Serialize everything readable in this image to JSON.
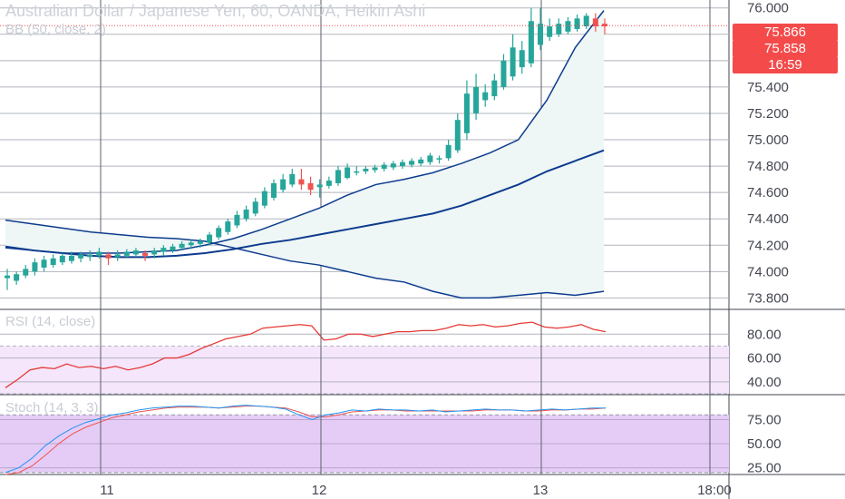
{
  "header": {
    "title": "Australian Dollar / Japanese Yen, 60, OANDA, Heikin Ashi",
    "indicator": "BB (50, close, 2)",
    "rsi_label": "RSI (14, close)",
    "stoch_label": "Stoch (14, 3, 3)"
  },
  "price_tags": {
    "last": "75.866",
    "second": "75.858",
    "countdown": "16:59",
    "color": "#f44a4a"
  },
  "colors": {
    "up": "#26a69a",
    "down": "#ef5350",
    "bb_line": "#0d3b8e",
    "bb_fill": "#eef6f6",
    "rsi_line": "#e53935",
    "rsi_band": "#f5e6fb",
    "stoch_band": "#e5ccf6",
    "stoch_k": "#2196f3",
    "stoch_d": "#ef5350"
  },
  "chart_data": [
    {
      "type": "candlestick",
      "y_ticks": [
        "76.000",
        "75.400",
        "75.200",
        "75.000",
        "74.800",
        "74.600",
        "74.400",
        "74.200",
        "74.000",
        "73.800"
      ],
      "x_ticks": [
        "11",
        "12",
        "13",
        "18:00"
      ],
      "ylim": [
        73.72,
        76.06
      ],
      "candles_ohlc": [
        [
          73.95,
          74.02,
          73.86,
          73.97
        ],
        [
          73.93,
          74.0,
          73.9,
          73.98
        ],
        [
          73.97,
          74.05,
          73.95,
          74.02
        ],
        [
          74.0,
          74.1,
          73.97,
          74.07
        ],
        [
          74.03,
          74.12,
          74.0,
          74.09
        ],
        [
          74.05,
          74.13,
          74.03,
          74.1
        ],
        [
          74.07,
          74.14,
          74.05,
          74.12
        ],
        [
          74.08,
          74.15,
          74.06,
          74.12
        ],
        [
          74.1,
          74.15,
          74.07,
          74.13
        ],
        [
          74.11,
          74.16,
          74.08,
          74.13
        ],
        [
          74.12,
          74.18,
          74.1,
          74.15
        ],
        [
          74.13,
          74.15,
          74.05,
          74.1
        ],
        [
          74.11,
          74.16,
          74.08,
          74.13
        ],
        [
          74.12,
          74.17,
          74.1,
          74.15
        ],
        [
          74.13,
          74.18,
          74.11,
          74.16
        ],
        [
          74.14,
          74.16,
          74.08,
          74.12
        ],
        [
          74.13,
          74.18,
          74.1,
          74.16
        ],
        [
          74.15,
          74.2,
          74.12,
          74.18
        ],
        [
          74.16,
          74.21,
          74.14,
          74.19
        ],
        [
          74.18,
          74.23,
          74.16,
          74.21
        ],
        [
          74.2,
          74.24,
          74.17,
          74.22
        ],
        [
          74.21,
          74.25,
          74.18,
          74.23
        ],
        [
          74.22,
          74.3,
          74.2,
          74.28
        ],
        [
          74.26,
          74.35,
          74.24,
          74.33
        ],
        [
          74.3,
          74.4,
          74.28,
          74.38
        ],
        [
          74.35,
          74.46,
          74.33,
          74.43
        ],
        [
          74.4,
          74.5,
          74.38,
          74.47
        ],
        [
          74.44,
          74.56,
          74.42,
          74.53
        ],
        [
          74.5,
          74.64,
          74.48,
          74.61
        ],
        [
          74.56,
          74.7,
          74.54,
          74.67
        ],
        [
          74.62,
          74.74,
          74.6,
          74.7
        ],
        [
          74.66,
          74.78,
          74.64,
          74.74
        ],
        [
          74.7,
          74.78,
          74.62,
          74.66
        ],
        [
          74.67,
          74.72,
          74.58,
          74.62
        ],
        [
          74.64,
          74.7,
          74.56,
          74.66
        ],
        [
          74.65,
          74.72,
          74.63,
          74.69
        ],
        [
          74.67,
          74.8,
          74.65,
          74.77
        ],
        [
          74.71,
          74.82,
          74.7,
          74.79
        ],
        [
          74.75,
          74.8,
          74.73,
          74.76
        ],
        [
          74.76,
          74.8,
          74.74,
          74.78
        ],
        [
          74.77,
          74.81,
          74.75,
          74.79
        ],
        [
          74.78,
          74.83,
          74.76,
          74.81
        ],
        [
          74.79,
          74.84,
          74.77,
          74.82
        ],
        [
          74.8,
          74.85,
          74.78,
          74.83
        ],
        [
          74.81,
          74.86,
          74.79,
          74.84
        ],
        [
          74.82,
          74.87,
          74.8,
          74.85
        ],
        [
          74.83,
          74.9,
          74.81,
          74.88
        ],
        [
          74.85,
          74.88,
          74.82,
          74.86
        ],
        [
          74.86,
          75.0,
          74.84,
          74.96
        ],
        [
          74.92,
          75.2,
          74.9,
          75.15
        ],
        [
          75.05,
          75.45,
          75.0,
          75.35
        ],
        [
          75.2,
          75.5,
          75.15,
          75.4
        ],
        [
          75.3,
          75.42,
          75.25,
          75.36
        ],
        [
          75.33,
          75.5,
          75.3,
          75.45
        ],
        [
          75.4,
          75.65,
          75.38,
          75.6
        ],
        [
          75.48,
          75.8,
          75.45,
          75.7
        ],
        [
          75.55,
          75.75,
          75.5,
          75.68
        ],
        [
          75.58,
          76.0,
          75.55,
          75.9
        ],
        [
          75.72,
          76.0,
          75.68,
          75.88
        ],
        [
          75.78,
          75.92,
          75.75,
          75.86
        ],
        [
          75.8,
          75.92,
          75.78,
          75.88
        ],
        [
          75.82,
          75.93,
          75.8,
          75.9
        ],
        [
          75.84,
          75.95,
          75.82,
          75.92
        ],
        [
          75.86,
          75.96,
          75.84,
          75.94
        ],
        [
          75.92,
          75.96,
          75.82,
          75.86
        ],
        [
          75.88,
          75.92,
          75.8,
          75.86
        ]
      ],
      "bb_upper": [
        74.18,
        74.16,
        74.14,
        74.14,
        74.14,
        74.15,
        74.16,
        74.2,
        74.25,
        74.32,
        74.4,
        74.48,
        74.58,
        74.66,
        74.7,
        74.75,
        74.82,
        74.9,
        75.0,
        75.3,
        75.7,
        75.98
      ],
      "bb_mid": [
        74.19,
        74.16,
        74.14,
        74.12,
        74.11,
        74.11,
        74.12,
        74.14,
        74.17,
        74.21,
        74.24,
        74.28,
        74.32,
        74.36,
        74.4,
        74.44,
        74.5,
        74.58,
        74.66,
        74.76,
        74.84,
        74.92
      ],
      "bb_lower": [
        74.39,
        74.36,
        74.33,
        74.3,
        74.28,
        74.26,
        74.25,
        74.23,
        74.18,
        74.13,
        74.08,
        74.05,
        74.0,
        73.95,
        73.92,
        73.85,
        73.8,
        73.8,
        73.82,
        73.84,
        73.82,
        73.85
      ]
    },
    {
      "type": "line",
      "name": "RSI",
      "y_ticks": [
        "80.00",
        "60.00",
        "40.00"
      ],
      "ylim": [
        30,
        100
      ],
      "values": [
        35,
        42,
        50,
        52,
        51,
        55,
        52,
        53,
        51,
        53,
        50,
        52,
        55,
        60,
        60,
        63,
        68,
        72,
        76,
        78,
        80,
        85,
        86,
        87,
        88,
        87,
        75,
        76,
        80,
        80,
        78,
        80,
        82,
        82,
        83,
        83,
        85,
        88,
        87,
        88,
        86,
        87,
        89,
        90,
        86,
        85,
        86,
        88,
        84,
        82
      ]
    },
    {
      "type": "line",
      "name": "Stoch",
      "y_ticks": [
        "75.00",
        "50.00",
        "25.00"
      ],
      "ylim": [
        18,
        100
      ],
      "k": [
        20,
        25,
        35,
        48,
        58,
        66,
        72,
        76,
        80,
        82,
        85,
        87,
        88,
        89,
        89,
        88,
        87,
        89,
        90,
        89,
        88,
        86,
        80,
        75,
        80,
        82,
        85,
        84,
        86,
        85,
        85,
        84,
        85,
        83,
        84,
        85,
        86,
        85,
        85,
        84,
        85,
        86,
        85,
        86,
        87,
        87
      ],
      "d": [
        18,
        20,
        27,
        38,
        50,
        60,
        67,
        72,
        77,
        80,
        83,
        85,
        87,
        88,
        88,
        88,
        87,
        88,
        89,
        89,
        88,
        87,
        83,
        78,
        78,
        80,
        83,
        84,
        85,
        85,
        84,
        84,
        84,
        84,
        84,
        84,
        85,
        85,
        85,
        84,
        84,
        85,
        85,
        86,
        86,
        87
      ]
    }
  ]
}
